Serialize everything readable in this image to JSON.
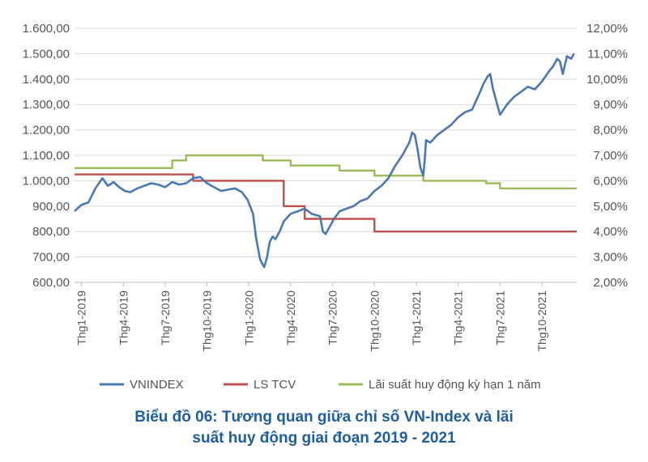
{
  "chart_data": {
    "type": "line",
    "title": "Biểu đồ 06: Tương quan giữa chỉ số VN-Index và lãi suất huy động giai đoạn 2019 - 2021",
    "title_lines": [
      "Biểu đồ 06: Tương quan giữa chỉ số VN-Index và lãi",
      "suất huy động giai đoạn 2019 - 2021"
    ],
    "x_range": [
      0,
      36
    ],
    "x_ticks": [
      {
        "label": "Thg1-2019",
        "month": 0.5
      },
      {
        "label": "Thg4-2019",
        "month": 3.5
      },
      {
        "label": "Thg7-2019",
        "month": 6.5
      },
      {
        "label": "Thg10-2019",
        "month": 9.5
      },
      {
        "label": "Thg1-2020",
        "month": 12.5
      },
      {
        "label": "Thg4-2020",
        "month": 15.5
      },
      {
        "label": "Thg7-2020",
        "month": 18.5
      },
      {
        "label": "Thg10-2020",
        "month": 21.5
      },
      {
        "label": "Thg1-2021",
        "month": 24.5
      },
      {
        "label": "Thg4-2021",
        "month": 27.5
      },
      {
        "label": "Thg7-2021",
        "month": 30.5
      },
      {
        "label": "Thg10-2021",
        "month": 33.5
      }
    ],
    "y_left": {
      "range": [
        600,
        1600
      ],
      "ticks": [
        "600,00",
        "700,00",
        "800,00",
        "900,00",
        "1.000,00",
        "1.100,00",
        "1.200,00",
        "1.300,00",
        "1.400,00",
        "1.500,00",
        "1.600,00"
      ]
    },
    "y_right": {
      "range": [
        2,
        12
      ],
      "ticks": [
        "2,00%",
        "3,00%",
        "4,00%",
        "5,00%",
        "6,00%",
        "7,00%",
        "8,00%",
        "9,00%",
        "10,00%",
        "11,00%",
        "12,00%"
      ]
    },
    "grid": true,
    "series": [
      {
        "name": "VNINDEX",
        "axis": "left",
        "color": "#4a78b5",
        "x": [
          0,
          0.5,
          1,
          1.5,
          2,
          2.4,
          2.8,
          3.2,
          3.6,
          4,
          4.5,
          5,
          5.5,
          6,
          6.5,
          7,
          7.5,
          8,
          8.5,
          9,
          9.5,
          10,
          10.5,
          11,
          11.5,
          12,
          12.4,
          12.8,
          13,
          13.3,
          13.6,
          13.8,
          14,
          14.2,
          14.4,
          14.7,
          15,
          15.5,
          16,
          16.5,
          17,
          17.3,
          17.6,
          17.8,
          18,
          18.3,
          18.6,
          19,
          19.5,
          20,
          20.5,
          21,
          21.5,
          22,
          22.5,
          23,
          23.5,
          24,
          24.2,
          24.4,
          24.6,
          24.8,
          25,
          25.1,
          25.2,
          25.5,
          26,
          26.5,
          27,
          27.5,
          28,
          28.5,
          29,
          29.3,
          29.6,
          29.8,
          30,
          30.5,
          31,
          31.5,
          32,
          32.5,
          33,
          33.5,
          34,
          34.3,
          34.6,
          34.8,
          35,
          35.3,
          35.6,
          35.8
        ],
        "values": [
          880,
          905,
          915,
          970,
          1010,
          980,
          995,
          975,
          960,
          955,
          970,
          980,
          990,
          985,
          975,
          995,
          985,
          990,
          1010,
          1015,
          990,
          975,
          960,
          965,
          970,
          955,
          925,
          870,
          780,
          690,
          660,
          700,
          760,
          780,
          770,
          800,
          840,
          870,
          880,
          890,
          870,
          865,
          860,
          800,
          790,
          820,
          850,
          880,
          890,
          900,
          920,
          930,
          960,
          980,
          1010,
          1060,
          1100,
          1150,
          1190,
          1180,
          1120,
          1050,
          1020,
          1080,
          1160,
          1150,
          1180,
          1200,
          1220,
          1250,
          1270,
          1280,
          1340,
          1380,
          1410,
          1420,
          1360,
          1260,
          1300,
          1330,
          1350,
          1370,
          1360,
          1390,
          1430,
          1450,
          1480,
          1470,
          1420,
          1490,
          1480,
          1500
        ]
      },
      {
        "name": "LS TCV",
        "axis": "right",
        "color": "#c0504d",
        "x": [
          0,
          8.5,
          8.5,
          15,
          15,
          16.5,
          16.5,
          21.5,
          21.5,
          36
        ],
        "values": [
          6.25,
          6.25,
          6.0,
          6.0,
          5.0,
          5.0,
          4.5,
          4.5,
          4.0,
          4.0
        ]
      },
      {
        "name": "Lãi suất huy động kỳ hạn 1 năm",
        "axis": "right",
        "color": "#9bbb59",
        "x": [
          0,
          7,
          7,
          8,
          8,
          13.5,
          13.5,
          15.5,
          15.5,
          19,
          19,
          21.5,
          21.5,
          25,
          25,
          29.5,
          29.5,
          30.5,
          30.5,
          36
        ],
        "values": [
          6.5,
          6.5,
          6.8,
          6.8,
          7.0,
          7.0,
          6.8,
          6.8,
          6.6,
          6.6,
          6.4,
          6.4,
          6.2,
          6.2,
          6.0,
          6.0,
          5.9,
          5.9,
          5.7,
          5.7
        ]
      }
    ],
    "legend_position": "bottom"
  }
}
